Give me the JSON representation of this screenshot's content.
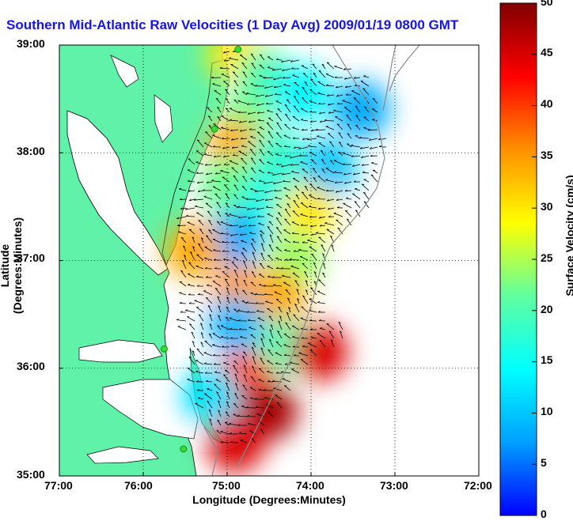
{
  "chart_data": {
    "type": "heatmap",
    "title": "Southern Mid-Atlantic Raw Velocities (1 Day Avg) 2009/01/19 0800 GMT",
    "xlabel": "Longitude (Degrees:Minutes)",
    "ylabel": "Latitude (Degrees:Minutes)",
    "xlim": [
      -77,
      -72
    ],
    "ylim": [
      35,
      39
    ],
    "x_ticks": [
      "77:00",
      "76:00",
      "75:00",
      "74:00",
      "73:00",
      "72:00"
    ],
    "y_ticks": [
      "39:00",
      "38:00",
      "37:00",
      "36:00",
      "35:00"
    ],
    "grid": true,
    "colorbar": {
      "label": "Surface Velocity (cm/s)",
      "range": [
        0,
        50
      ],
      "ticks": [
        "0",
        "5",
        "10",
        "15",
        "20",
        "25",
        "30",
        "35",
        "40",
        "45",
        "50"
      ],
      "colormap": [
        "#0000ff",
        "#00a0ff",
        "#00ffff",
        "#60ff9f",
        "#ffff00",
        "#ff9000",
        "#ff0000",
        "#800000"
      ]
    },
    "velocity_field": [
      {
        "lat": 38.9,
        "lon": -74.9,
        "speed": 30
      },
      {
        "lat": 38.7,
        "lon": -74.55,
        "speed": 20
      },
      {
        "lat": 38.55,
        "lon": -74.1,
        "speed": 14
      },
      {
        "lat": 38.4,
        "lon": -73.4,
        "speed": 8
      },
      {
        "lat": 38.3,
        "lon": -74.8,
        "speed": 22
      },
      {
        "lat": 38.05,
        "lon": -74.9,
        "speed": 34
      },
      {
        "lat": 37.95,
        "lon": -74.4,
        "speed": 18
      },
      {
        "lat": 37.85,
        "lon": -73.8,
        "speed": 10
      },
      {
        "lat": 37.7,
        "lon": -75.0,
        "speed": 22
      },
      {
        "lat": 37.55,
        "lon": -74.5,
        "speed": 16
      },
      {
        "lat": 37.45,
        "lon": -74.05,
        "speed": 30
      },
      {
        "lat": 37.2,
        "lon": -74.9,
        "speed": 8
      },
      {
        "lat": 37.1,
        "lon": -75.4,
        "speed": 34
      },
      {
        "lat": 37.0,
        "lon": -74.2,
        "speed": 24
      },
      {
        "lat": 36.7,
        "lon": -74.85,
        "speed": 35
      },
      {
        "lat": 36.65,
        "lon": -74.4,
        "speed": 34
      },
      {
        "lat": 36.4,
        "lon": -74.9,
        "speed": 9
      },
      {
        "lat": 36.2,
        "lon": -74.3,
        "speed": 20
      },
      {
        "lat": 36.15,
        "lon": -73.9,
        "speed": 45
      },
      {
        "lat": 35.9,
        "lon": -74.8,
        "speed": 40
      },
      {
        "lat": 35.75,
        "lon": -75.2,
        "speed": 12
      },
      {
        "lat": 35.6,
        "lon": -74.5,
        "speed": 48
      },
      {
        "lat": 35.3,
        "lon": -74.9,
        "speed": 45
      }
    ],
    "stations": [
      {
        "lat": 38.96,
        "lon": -74.87
      },
      {
        "lat": 38.22,
        "lon": -75.15
      },
      {
        "lat": 36.18,
        "lon": -75.75
      },
      {
        "lat": 35.25,
        "lon": -75.52
      }
    ]
  },
  "colors": {
    "title": "#1515e6",
    "land": "#5ff2a8",
    "coast": "#000000",
    "bathymetry": "#8a8a8a",
    "station": "#33dd33"
  }
}
